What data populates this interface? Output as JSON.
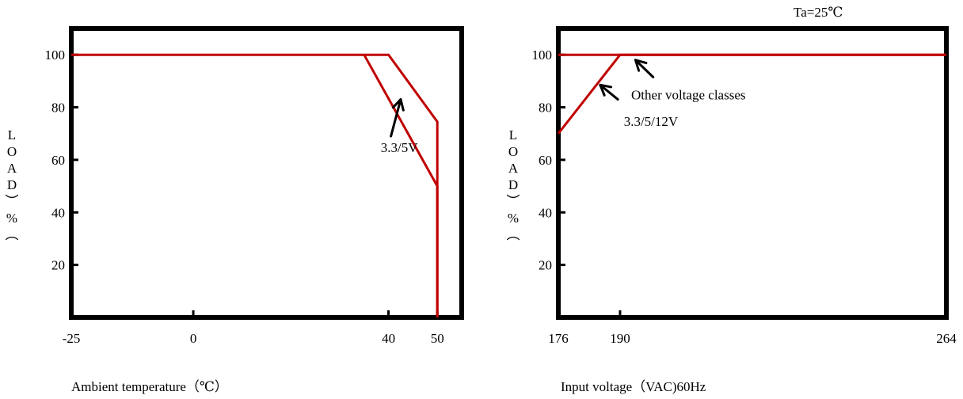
{
  "chart_data": [
    {
      "type": "line",
      "xlabel": "Ambient temperature（℃）",
      "ylabel": "LOAD（%）",
      "ylabel_chars": [
        "L",
        "O",
        "A",
        "D",
        "︶",
        "%",
        "︵"
      ],
      "x_ticks": [
        "-25",
        "0",
        "40",
        "50"
      ],
      "y_ticks": [
        "20",
        "40",
        "60",
        "80",
        "100"
      ],
      "xlim": [
        -25,
        55
      ],
      "ylim": [
        0,
        110
      ],
      "line_color": "#c00000",
      "series": [
        {
          "name": "",
          "x": [
            -25,
            40,
            50,
            50
          ],
          "y": [
            100,
            100,
            74.5,
            0
          ]
        },
        {
          "name": "3.3/5V",
          "x": [
            35,
            50,
            50
          ],
          "y": [
            100,
            50,
            0
          ]
        }
      ],
      "annotations": [
        {
          "text": "3.3/5V",
          "x": 42.2,
          "y": 63,
          "arrow_from": [
            40.5,
            69
          ],
          "arrow_to": [
            42.5,
            83
          ]
        }
      ]
    },
    {
      "type": "line",
      "xlabel": "Input voltage（VAC)60Hz",
      "ylabel": "LOAD（%）",
      "ylabel_chars": [
        "L",
        "O",
        "A",
        "D",
        "︶",
        "%",
        "︵"
      ],
      "x_ticks": [
        "176",
        "190",
        "264"
      ],
      "y_ticks": [
        "20",
        "40",
        "60",
        "80",
        "100"
      ],
      "xlim": [
        176,
        264
      ],
      "ylim": [
        0,
        110
      ],
      "line_color": "#c00000",
      "series": [
        {
          "name": "Other voltage classes",
          "x": [
            176,
            264
          ],
          "y": [
            100,
            100
          ]
        },
        {
          "name": "3.3/5/12V",
          "x": [
            176,
            190,
            264
          ],
          "y": [
            70,
            100,
            100
          ]
        }
      ],
      "annotations": [
        {
          "text": "Other voltage classes",
          "x": 205.5,
          "y": 83,
          "arrow_from": [
            197.5,
            91.5
          ],
          "arrow_to": [
            193.5,
            98
          ]
        },
        {
          "text": "3.3/5/12V",
          "x": 197,
          "y": 73,
          "arrow_from": [
            189.5,
            83
          ],
          "arrow_to": [
            185.5,
            88.5
          ]
        }
      ],
      "condition": "Ta=25℃"
    }
  ]
}
